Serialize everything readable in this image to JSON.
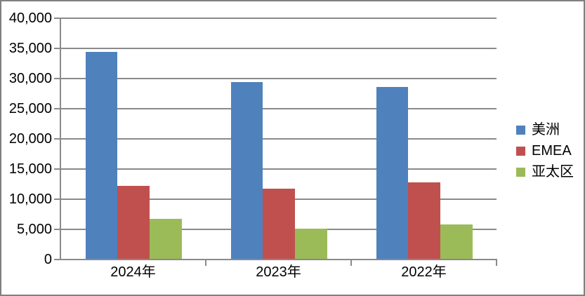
{
  "chart_data": {
    "type": "bar",
    "title": "",
    "xlabel": "",
    "ylabel": "",
    "categories": [
      "2024年",
      "2023年",
      "2022年"
    ],
    "series": [
      {
        "name": "美洲",
        "color": "#4F81BD",
        "values": [
          34400,
          29400,
          28600
        ]
      },
      {
        "name": "EMEA",
        "color": "#C0504D",
        "values": [
          12200,
          11700,
          12800
        ]
      },
      {
        "name": "亚太区",
        "color": "#9BBB59",
        "values": [
          6750,
          5100,
          5800
        ]
      }
    ],
    "ylim": [
      0,
      40000
    ],
    "ytick_step": 5000,
    "ytick_labels": [
      "0",
      "5,000",
      "10,000",
      "15,000",
      "20,000",
      "25,000",
      "30,000",
      "35,000",
      "40,000"
    ],
    "grid": true,
    "legend_position": "right",
    "legend_entries": [
      "美洲",
      "EMEA",
      "亚太区"
    ],
    "colors": {
      "gridline": "#8a8a8a",
      "axis": "#8a8a8a",
      "frame_border": "#808080",
      "text": "#000000"
    }
  }
}
